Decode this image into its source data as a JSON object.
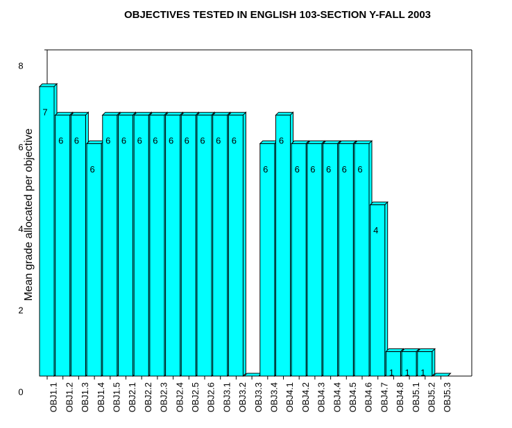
{
  "chart_data": {
    "type": "bar",
    "title": "OBJECTIVES TESTED IN ENGLISH 103-SECTION Y-FALL 2003",
    "y_label": "Mean grade allocated per objective",
    "categories": [
      "OBJ1.1",
      "OBJ1.2",
      "OBJ1.3",
      "OBJ1.4",
      "OBJ1.5",
      "OBJ2.1",
      "OBJ2.2",
      "OBJ2.3",
      "OBJ2.4",
      "OBJ2.5",
      "OBJ2.6",
      "OBJ3.1",
      "OBJ3.2",
      "OBJ3.3",
      "OBJ3.4",
      "OBJ4.1",
      "OBJ4.2",
      "OBJ4.3",
      "OBJ4.4",
      "OBJ4.5",
      "OBJ4.6",
      "OBJ4.7",
      "OBJ4.8",
      "OBJ5.1",
      "OBJ5.2",
      "OBJ5.3"
    ],
    "values": [
      7.1,
      6.4,
      6.4,
      5.7,
      6.4,
      6.4,
      6.4,
      6.4,
      6.4,
      6.4,
      6.4,
      6.4,
      6.4,
      0,
      5.7,
      6.4,
      5.7,
      5.7,
      5.7,
      5.7,
      5.7,
      4.2,
      0.6,
      0.6,
      0.6,
      0
    ],
    "value_labels": [
      "7",
      "6",
      "6",
      "6",
      "6",
      "6",
      "6",
      "6",
      "6",
      "6",
      "6",
      "6",
      "6",
      null,
      "6",
      "6",
      "6",
      "6",
      "6",
      "6",
      "6",
      "4",
      "1",
      "1",
      "1",
      null
    ],
    "color": "#00ffff",
    "ylim": [
      0,
      8
    ],
    "yticks": [
      0,
      2,
      4,
      6,
      8
    ],
    "grid": false
  }
}
